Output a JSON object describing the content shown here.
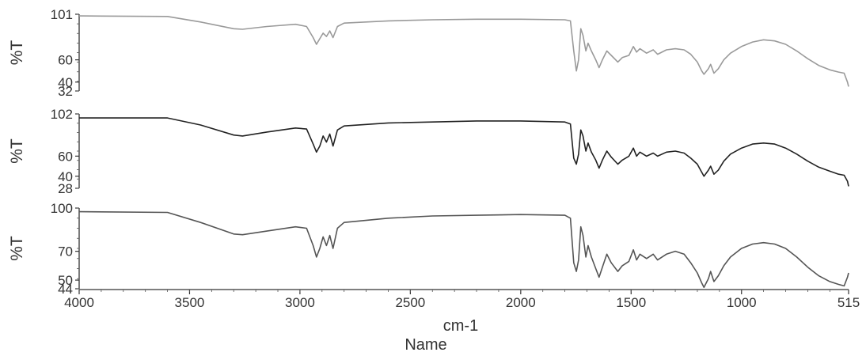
{
  "chart_data": {
    "type": "line",
    "xlabel": "cm-1",
    "sublabel": "Name",
    "x_range": [
      4000,
      515
    ],
    "x_reversed": true,
    "x_ticks": [
      "4000",
      "3500",
      "3000",
      "2500",
      "2000",
      "1500",
      "1000",
      "515"
    ],
    "grid": false,
    "panels": [
      {
        "ylabel": "%T",
        "ylim": [
          32,
          101
        ],
        "y_ticks": [
          "101",
          "60",
          "40",
          "32"
        ],
        "color": "#9a9a9a",
        "points": [
          [
            4000,
            99.5
          ],
          [
            3600,
            99
          ],
          [
            3450,
            94
          ],
          [
            3300,
            88
          ],
          [
            3260,
            87.5
          ],
          [
            3150,
            90
          ],
          [
            3020,
            92
          ],
          [
            2970,
            90
          ],
          [
            2940,
            80
          ],
          [
            2925,
            74
          ],
          [
            2910,
            79
          ],
          [
            2895,
            84
          ],
          [
            2880,
            81
          ],
          [
            2865,
            86
          ],
          [
            2850,
            80
          ],
          [
            2830,
            90
          ],
          [
            2800,
            93
          ],
          [
            2600,
            95
          ],
          [
            2400,
            96
          ],
          [
            2200,
            96.5
          ],
          [
            2000,
            96.5
          ],
          [
            1800,
            96
          ],
          [
            1775,
            95
          ],
          [
            1760,
            68
          ],
          [
            1748,
            50
          ],
          [
            1738,
            60
          ],
          [
            1728,
            88
          ],
          [
            1718,
            82
          ],
          [
            1705,
            68
          ],
          [
            1695,
            75
          ],
          [
            1680,
            68
          ],
          [
            1660,
            60
          ],
          [
            1645,
            53
          ],
          [
            1630,
            60
          ],
          [
            1610,
            68
          ],
          [
            1590,
            64
          ],
          [
            1560,
            58
          ],
          [
            1540,
            62
          ],
          [
            1510,
            64
          ],
          [
            1490,
            72
          ],
          [
            1475,
            67
          ],
          [
            1460,
            70
          ],
          [
            1430,
            66
          ],
          [
            1400,
            69
          ],
          [
            1380,
            65
          ],
          [
            1340,
            69
          ],
          [
            1300,
            70
          ],
          [
            1260,
            69
          ],
          [
            1230,
            65
          ],
          [
            1200,
            58
          ],
          [
            1180,
            50
          ],
          [
            1170,
            47
          ],
          [
            1150,
            52
          ],
          [
            1140,
            56
          ],
          [
            1125,
            48
          ],
          [
            1105,
            52
          ],
          [
            1080,
            60
          ],
          [
            1050,
            66
          ],
          [
            1000,
            72
          ],
          [
            950,
            76
          ],
          [
            900,
            78
          ],
          [
            850,
            77
          ],
          [
            800,
            74
          ],
          [
            750,
            68
          ],
          [
            700,
            61
          ],
          [
            650,
            55
          ],
          [
            600,
            51
          ],
          [
            560,
            49
          ],
          [
            535,
            48
          ],
          [
            520,
            40
          ],
          [
            515,
            36
          ]
        ]
      },
      {
        "ylabel": "%T",
        "ylim": [
          28,
          102
        ],
        "y_ticks": [
          "102",
          "60",
          "40",
          "28"
        ],
        "color": "#222222",
        "points": [
          [
            4000,
            98
          ],
          [
            3600,
            98
          ],
          [
            3450,
            91
          ],
          [
            3300,
            81
          ],
          [
            3260,
            80
          ],
          [
            3150,
            84
          ],
          [
            3020,
            88
          ],
          [
            2970,
            87
          ],
          [
            2940,
            72
          ],
          [
            2925,
            64
          ],
          [
            2910,
            70
          ],
          [
            2895,
            80
          ],
          [
            2880,
            74
          ],
          [
            2865,
            82
          ],
          [
            2850,
            70
          ],
          [
            2830,
            86
          ],
          [
            2800,
            90
          ],
          [
            2600,
            93
          ],
          [
            2400,
            94
          ],
          [
            2200,
            95
          ],
          [
            2000,
            95
          ],
          [
            1800,
            94
          ],
          [
            1775,
            92
          ],
          [
            1760,
            58
          ],
          [
            1748,
            52
          ],
          [
            1738,
            62
          ],
          [
            1728,
            86
          ],
          [
            1718,
            80
          ],
          [
            1705,
            65
          ],
          [
            1695,
            73
          ],
          [
            1680,
            64
          ],
          [
            1660,
            56
          ],
          [
            1645,
            48
          ],
          [
            1630,
            56
          ],
          [
            1610,
            65
          ],
          [
            1590,
            59
          ],
          [
            1560,
            52
          ],
          [
            1540,
            56
          ],
          [
            1510,
            60
          ],
          [
            1490,
            68
          ],
          [
            1475,
            60
          ],
          [
            1460,
            64
          ],
          [
            1430,
            60
          ],
          [
            1400,
            63
          ],
          [
            1380,
            60
          ],
          [
            1340,
            64
          ],
          [
            1300,
            65
          ],
          [
            1260,
            63
          ],
          [
            1230,
            58
          ],
          [
            1200,
            52
          ],
          [
            1180,
            44
          ],
          [
            1170,
            40
          ],
          [
            1150,
            46
          ],
          [
            1140,
            50
          ],
          [
            1125,
            42
          ],
          [
            1105,
            46
          ],
          [
            1080,
            55
          ],
          [
            1050,
            62
          ],
          [
            1000,
            68
          ],
          [
            950,
            72
          ],
          [
            900,
            73
          ],
          [
            850,
            72
          ],
          [
            800,
            68
          ],
          [
            750,
            62
          ],
          [
            700,
            55
          ],
          [
            650,
            49
          ],
          [
            600,
            45
          ],
          [
            560,
            42
          ],
          [
            535,
            41
          ],
          [
            520,
            35
          ],
          [
            515,
            30
          ]
        ]
      },
      {
        "ylabel": "%T",
        "ylim": [
          44,
          100
        ],
        "y_ticks": [
          "100",
          "70",
          "50",
          "44"
        ],
        "color": "#555555",
        "points": [
          [
            4000,
            97.5
          ],
          [
            3600,
            97
          ],
          [
            3450,
            90
          ],
          [
            3300,
            82
          ],
          [
            3260,
            81.5
          ],
          [
            3150,
            84
          ],
          [
            3020,
            87
          ],
          [
            2970,
            86
          ],
          [
            2940,
            74
          ],
          [
            2925,
            66
          ],
          [
            2910,
            72
          ],
          [
            2895,
            80
          ],
          [
            2880,
            74
          ],
          [
            2865,
            81
          ],
          [
            2850,
            72
          ],
          [
            2830,
            86
          ],
          [
            2800,
            90
          ],
          [
            2600,
            93
          ],
          [
            2400,
            94.5
          ],
          [
            2200,
            95
          ],
          [
            2000,
            95.5
          ],
          [
            1800,
            95
          ],
          [
            1775,
            93
          ],
          [
            1760,
            62
          ],
          [
            1748,
            56
          ],
          [
            1738,
            64
          ],
          [
            1728,
            87
          ],
          [
            1718,
            81
          ],
          [
            1705,
            66
          ],
          [
            1695,
            74
          ],
          [
            1680,
            66
          ],
          [
            1660,
            58
          ],
          [
            1645,
            52
          ],
          [
            1630,
            59
          ],
          [
            1610,
            68
          ],
          [
            1590,
            62
          ],
          [
            1560,
            56
          ],
          [
            1540,
            60
          ],
          [
            1510,
            63
          ],
          [
            1490,
            71
          ],
          [
            1475,
            64
          ],
          [
            1460,
            68
          ],
          [
            1430,
            65
          ],
          [
            1400,
            68
          ],
          [
            1380,
            64
          ],
          [
            1340,
            68
          ],
          [
            1300,
            70
          ],
          [
            1260,
            68
          ],
          [
            1230,
            62
          ],
          [
            1200,
            55
          ],
          [
            1180,
            48
          ],
          [
            1170,
            45
          ],
          [
            1150,
            51
          ],
          [
            1140,
            56
          ],
          [
            1125,
            49
          ],
          [
            1105,
            53
          ],
          [
            1080,
            60
          ],
          [
            1050,
            66
          ],
          [
            1000,
            72
          ],
          [
            950,
            75
          ],
          [
            900,
            76
          ],
          [
            850,
            75
          ],
          [
            800,
            72
          ],
          [
            750,
            66
          ],
          [
            700,
            59
          ],
          [
            650,
            53
          ],
          [
            600,
            49
          ],
          [
            560,
            47
          ],
          [
            535,
            46
          ],
          [
            520,
            52
          ],
          [
            515,
            55
          ]
        ]
      }
    ]
  }
}
